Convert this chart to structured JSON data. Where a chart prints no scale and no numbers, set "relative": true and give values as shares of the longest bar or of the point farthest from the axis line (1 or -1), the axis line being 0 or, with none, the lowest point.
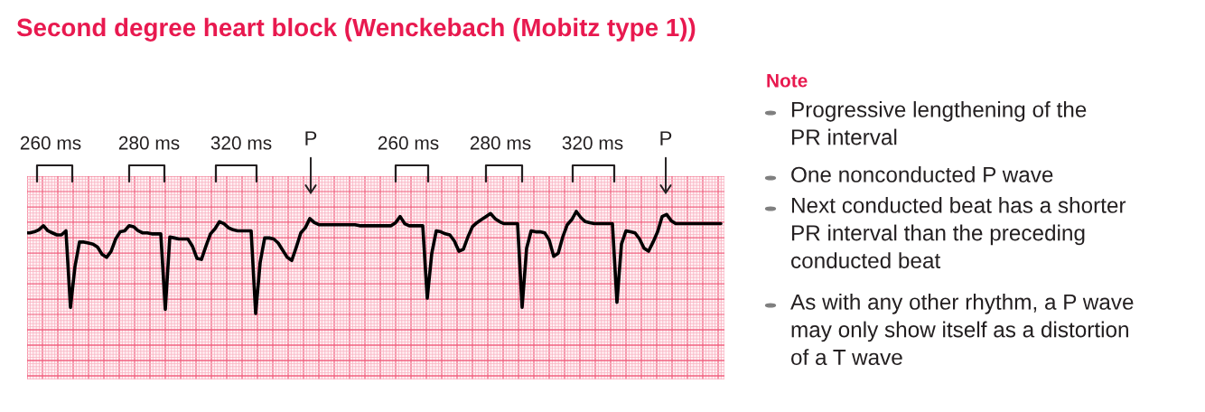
{
  "chart_data": {
    "type": "line",
    "title": "Second degree heart block (Wenckebach (Mobitz type 1))",
    "relative": true,
    "grid": true,
    "categories": [
      null,
      null,
      null,
      null,
      null,
      null,
      null,
      null,
      null,
      null,
      null,
      null,
      null,
      null,
      null,
      null,
      null,
      null,
      null,
      null,
      null,
      null,
      null,
      null,
      null,
      null,
      null,
      null,
      null,
      null,
      null,
      null,
      null,
      null,
      null,
      null,
      null,
      null,
      null,
      null,
      null,
      null,
      null,
      null,
      null,
      null,
      null,
      null,
      null,
      null,
      null,
      null,
      null,
      null,
      null,
      null,
      null,
      null,
      null,
      null,
      null,
      null,
      null,
      null,
      null,
      null,
      null,
      null,
      null,
      null,
      null,
      null,
      null,
      null,
      null,
      null,
      null,
      null,
      null,
      null,
      null,
      null,
      null,
      null,
      null,
      null,
      null,
      null,
      null,
      null,
      null,
      null,
      null,
      null,
      null,
      null,
      null,
      null,
      null,
      null,
      null,
      null,
      null,
      null,
      null,
      null,
      null,
      null,
      null,
      null,
      null,
      null,
      null,
      null,
      null,
      null,
      null,
      null,
      null,
      null,
      null,
      null,
      null,
      null,
      null,
      null,
      null,
      null,
      null,
      null,
      null,
      null,
      null,
      null,
      null,
      null,
      null,
      null,
      null,
      null,
      null,
      null,
      null,
      null,
      null,
      null,
      null,
      null,
      null,
      null,
      null,
      null,
      null,
      null,
      null
    ],
    "series": [
      {
        "color": "#000000",
        "values": [
          0.79,
          0.79,
          0.8,
          0.82,
          0.86,
          0.81,
          0.79,
          0.77,
          0.77,
          0.81,
          0.06,
          0.46,
          0.7,
          0.7,
          0.69,
          0.68,
          0.65,
          0.58,
          0.55,
          0.61,
          0.73,
          0.8,
          0.81,
          0.86,
          0.85,
          0.81,
          0.79,
          0.79,
          0.78,
          0.78,
          0.78,
          0.04,
          0.75,
          0.74,
          0.73,
          0.73,
          0.73,
          0.66,
          0.54,
          0.53,
          0.66,
          0.78,
          0.83,
          0.9,
          0.88,
          0.84,
          0.82,
          0.81,
          0.81,
          0.81,
          0.81,
          0,
          0.5,
          0.74,
          0.74,
          0.73,
          0.69,
          0.62,
          0.55,
          0.52,
          0.65,
          0.79,
          0.84,
          0.93,
          0.89,
          0.87,
          0.87,
          0.87,
          0.87,
          0.87,
          0.87,
          0.87,
          0.87,
          0.87,
          0.86,
          0.86,
          0.86,
          0.86,
          0.86,
          0.86,
          0.86,
          0.86,
          0.89,
          0.95,
          0.88,
          0.86,
          0.86,
          0.86,
          0.86,
          0.15,
          0.59,
          0.81,
          0.8,
          0.78,
          0.77,
          0.71,
          0.61,
          0.63,
          0.75,
          0.85,
          0.89,
          0.92,
          0.95,
          0.98,
          0.93,
          0.9,
          0.88,
          0.88,
          0.88,
          0.88,
          0.06,
          0.64,
          0.81,
          0.8,
          0.8,
          0.79,
          0.72,
          0.56,
          0.59,
          0.75,
          0.87,
          0.92,
          1,
          0.94,
          0.9,
          0.89,
          0.88,
          0.88,
          0.88,
          0.88,
          0.88,
          0.11,
          0.68,
          0.81,
          0.8,
          0.79,
          0.73,
          0.64,
          0.61,
          0.7,
          0.8,
          0.95,
          0.97,
          0.91,
          0.88,
          0.88,
          0.88,
          0.88,
          0.88,
          0.88,
          0.88,
          0.88,
          0.88,
          0.88,
          0.88
        ]
      }
    ],
    "annotations": [
      "260 ms",
      "280 ms",
      "320 ms",
      "P",
      "260 ms",
      "280 ms",
      "320 ms",
      "P",
      "Note",
      "Progressive lengthening of the\nPR interval",
      "One nonconducted P wave",
      "Next conducted beat has a shorter\nPR interval than the preceding\nconducted beat",
      "As with any other rhythm, a P wave\nmay only show itself as a distortion\nof a T wave"
    ]
  }
}
